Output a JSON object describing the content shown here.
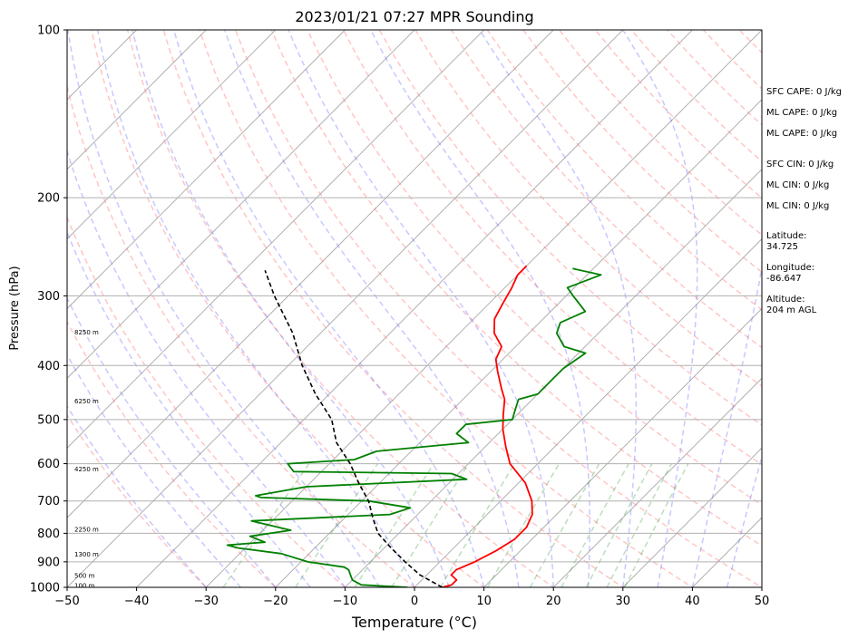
{
  "chart_data": {
    "type": "line",
    "subtype": "skew-t log-p sounding",
    "title": "2023/01/21 07:27 MPR Sounding",
    "xlabel": "Temperature (°C)",
    "ylabel": "Pressure (hPa)",
    "xlim": [
      -50,
      50
    ],
    "ylim": [
      1000,
      100
    ],
    "y_scale": "log",
    "grid": true,
    "x_ticks": [
      "−50",
      "−40",
      "−30",
      "−20",
      "−10",
      "0",
      "10",
      "20",
      "30",
      "40",
      "50"
    ],
    "y_ticks": [
      "100",
      "200",
      "300",
      "400",
      "500",
      "600",
      "700",
      "800",
      "900",
      "1000"
    ],
    "height_labels": [
      {
        "p": 990,
        "text": "100 m"
      },
      {
        "p": 950,
        "text": "500 m"
      },
      {
        "p": 870,
        "text": "1300 m"
      },
      {
        "p": 785,
        "text": "2250 m"
      },
      {
        "p": 612,
        "text": "4250 m"
      },
      {
        "p": 462,
        "text": "6250 m"
      },
      {
        "p": 348,
        "text": "8250 m"
      }
    ],
    "stats": [
      "SFC CAPE: 0 J/kg",
      "ML CAPE: 0 J/kg",
      "ML CAPE: 0 J/kg",
      "SFC CIN: 0 J/kg",
      "ML CIN: 0 J/kg",
      "ML CIN: 0 J/kg",
      "Latitude:",
      "34.725",
      "Longitude:",
      "-86.647",
      "Altitude:",
      "204 m AGL"
    ],
    "series": [
      {
        "key": "temperature",
        "color": "#ff0000",
        "points": [
          [
            4,
            1000
          ],
          [
            5,
            990
          ],
          [
            5,
            970
          ],
          [
            3.5,
            950
          ],
          [
            3.5,
            930
          ],
          [
            5,
            900
          ],
          [
            6.5,
            860
          ],
          [
            7.5,
            820
          ],
          [
            7.5,
            780
          ],
          [
            6.5,
            740
          ],
          [
            4.5,
            700
          ],
          [
            1,
            650
          ],
          [
            -4,
            600
          ],
          [
            -7,
            560
          ],
          [
            -10,
            520
          ],
          [
            -12,
            490
          ],
          [
            -14,
            460
          ],
          [
            -16,
            440
          ],
          [
            -19,
            410
          ],
          [
            -21,
            390
          ],
          [
            -22,
            370
          ],
          [
            -25,
            350
          ],
          [
            -27,
            330
          ],
          [
            -28,
            310
          ],
          [
            -29,
            290
          ],
          [
            -30,
            275
          ],
          [
            -30,
            265
          ]
        ]
      },
      {
        "key": "dewpoint",
        "color": "#008000",
        "points": [
          [
            -1,
            1000
          ],
          [
            -8,
            990
          ],
          [
            -10,
            970
          ],
          [
            -11,
            950
          ],
          [
            -12,
            930
          ],
          [
            -13,
            920
          ],
          [
            -19,
            900
          ],
          [
            -24,
            870
          ],
          [
            -31,
            850
          ],
          [
            -33,
            840
          ],
          [
            -28,
            830
          ],
          [
            -31,
            810
          ],
          [
            -26,
            790
          ],
          [
            -33,
            760
          ],
          [
            -14,
            740
          ],
          [
            -12,
            720
          ],
          [
            -19,
            700
          ],
          [
            -35,
            690
          ],
          [
            -36,
            685
          ],
          [
            -30,
            660
          ],
          [
            -8,
            640
          ],
          [
            -11,
            625
          ],
          [
            -34,
            620
          ],
          [
            -36,
            600
          ],
          [
            -27,
            590
          ],
          [
            -25,
            570
          ],
          [
            -13,
            550
          ],
          [
            -16,
            530
          ],
          [
            -16,
            510
          ],
          [
            -10,
            500
          ],
          [
            -11,
            480
          ],
          [
            -12,
            460
          ],
          [
            -10,
            450
          ],
          [
            -10,
            420
          ],
          [
            -10,
            405
          ],
          [
            -9,
            380
          ],
          [
            -13,
            370
          ],
          [
            -16,
            350
          ],
          [
            -17,
            335
          ],
          [
            -15,
            320
          ],
          [
            -19,
            300
          ],
          [
            -21,
            290
          ],
          [
            -18,
            275
          ],
          [
            -23,
            268
          ]
        ]
      },
      {
        "key": "parcel",
        "color": "#000000",
        "dashed": true,
        "points": [
          [
            4,
            1000
          ],
          [
            -1,
            950
          ],
          [
            -5,
            900
          ],
          [
            -9,
            850
          ],
          [
            -13,
            800
          ],
          [
            -16,
            750
          ],
          [
            -19,
            700
          ],
          [
            -23,
            650
          ],
          [
            -27,
            600
          ],
          [
            -32,
            550
          ],
          [
            -36,
            500
          ],
          [
            -42,
            450
          ],
          [
            -48,
            400
          ],
          [
            -54,
            350
          ],
          [
            -62,
            300
          ],
          [
            -67,
            270
          ]
        ]
      }
    ]
  }
}
